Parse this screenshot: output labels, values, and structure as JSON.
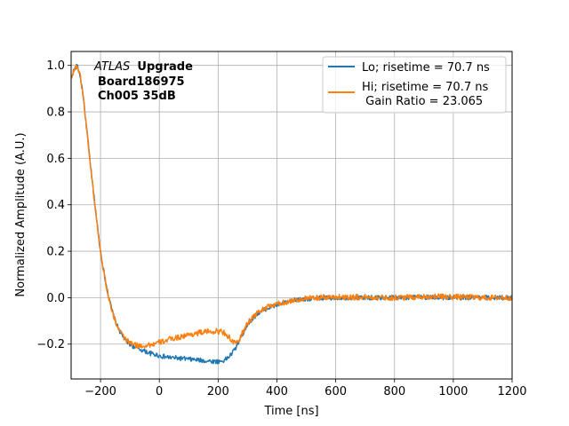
{
  "chart_data": {
    "type": "line",
    "xlabel": "Time [ns]",
    "ylabel": "Normalized Amplitude (A.U.)",
    "xlim": [
      -300,
      1200
    ],
    "ylim": [
      -0.35,
      1.06
    ],
    "xticks": [
      -200,
      0,
      200,
      400,
      600,
      800,
      1000,
      1200
    ],
    "xtick_labels": [
      "−200",
      "0",
      "200",
      "400",
      "600",
      "800",
      "1000",
      "1200"
    ],
    "yticks": [
      -0.2,
      0.0,
      0.2,
      0.4,
      0.6,
      0.8,
      1.0
    ],
    "ytick_labels": [
      "−0.2",
      "0.0",
      "0.2",
      "0.4",
      "0.6",
      "0.8",
      "1.0"
    ],
    "grid": true,
    "legend_placement": "top-right",
    "annotation": {
      "experiment_italic": "ATLAS",
      "experiment_bold": "Upgrade",
      "board": "Board186975",
      "channel": "Ch005 35dB"
    },
    "series": [
      {
        "name": "Lo; risetime = 70.7 ns",
        "color": "#1f77b4",
        "noise": 0.01,
        "x": [
          -300,
          -290,
          -280,
          -270,
          -260,
          -250,
          -240,
          -230,
          -220,
          -210,
          -200,
          -190,
          -180,
          -170,
          -160,
          -150,
          -140,
          -130,
          -120,
          -110,
          -100,
          -90,
          -80,
          -70,
          -60,
          -50,
          -40,
          -30,
          -20,
          -10,
          0,
          20,
          40,
          60,
          80,
          100,
          120,
          140,
          160,
          180,
          200,
          210,
          220,
          230,
          240,
          250,
          260,
          270,
          280,
          290,
          300,
          320,
          340,
          360,
          380,
          400,
          420,
          440,
          460,
          480,
          500,
          550,
          600,
          700,
          800,
          900,
          1000,
          1100,
          1200
        ],
        "y": [
          0.95,
          0.98,
          1.0,
          0.96,
          0.88,
          0.76,
          0.64,
          0.52,
          0.41,
          0.3,
          0.2,
          0.12,
          0.05,
          -0.01,
          -0.06,
          -0.1,
          -0.13,
          -0.155,
          -0.175,
          -0.19,
          -0.2,
          -0.208,
          -0.215,
          -0.22,
          -0.225,
          -0.23,
          -0.235,
          -0.24,
          -0.243,
          -0.246,
          -0.25,
          -0.255,
          -0.258,
          -0.26,
          -0.262,
          -0.265,
          -0.267,
          -0.27,
          -0.272,
          -0.274,
          -0.275,
          -0.274,
          -0.27,
          -0.262,
          -0.25,
          -0.235,
          -0.215,
          -0.19,
          -0.165,
          -0.14,
          -0.115,
          -0.085,
          -0.065,
          -0.05,
          -0.04,
          -0.032,
          -0.025,
          -0.018,
          -0.012,
          -0.008,
          -0.005,
          -0.002,
          0.0,
          0.0,
          0.0,
          0.002,
          0.0,
          0.0,
          0.0
        ]
      },
      {
        "name": "Hi; risetime = 70.7 ns\n Gain Ratio = 23.065",
        "color": "#ff7f0e",
        "noise": 0.012,
        "x": [
          -300,
          -290,
          -280,
          -270,
          -260,
          -250,
          -240,
          -230,
          -220,
          -210,
          -200,
          -190,
          -180,
          -170,
          -160,
          -150,
          -140,
          -130,
          -120,
          -110,
          -100,
          -90,
          -80,
          -70,
          -60,
          -50,
          -40,
          -30,
          -20,
          -10,
          0,
          20,
          40,
          60,
          80,
          100,
          120,
          140,
          160,
          180,
          200,
          210,
          220,
          230,
          240,
          250,
          260,
          270,
          280,
          290,
          300,
          320,
          340,
          360,
          380,
          400,
          420,
          440,
          460,
          480,
          500,
          550,
          600,
          700,
          800,
          900,
          1000,
          1100,
          1200
        ],
        "y": [
          0.95,
          0.98,
          1.0,
          0.96,
          0.88,
          0.76,
          0.64,
          0.52,
          0.41,
          0.3,
          0.2,
          0.12,
          0.05,
          -0.01,
          -0.06,
          -0.1,
          -0.13,
          -0.155,
          -0.172,
          -0.185,
          -0.195,
          -0.2,
          -0.205,
          -0.207,
          -0.207,
          -0.206,
          -0.204,
          -0.202,
          -0.2,
          -0.197,
          -0.193,
          -0.185,
          -0.178,
          -0.172,
          -0.166,
          -0.16,
          -0.155,
          -0.15,
          -0.147,
          -0.145,
          -0.145,
          -0.146,
          -0.15,
          -0.16,
          -0.175,
          -0.19,
          -0.2,
          -0.185,
          -0.16,
          -0.135,
          -0.11,
          -0.08,
          -0.06,
          -0.045,
          -0.035,
          -0.028,
          -0.022,
          -0.016,
          -0.011,
          -0.007,
          -0.004,
          0.0,
          0.003,
          0.002,
          0.0,
          0.005,
          0.004,
          0.0,
          0.0
        ]
      }
    ]
  }
}
